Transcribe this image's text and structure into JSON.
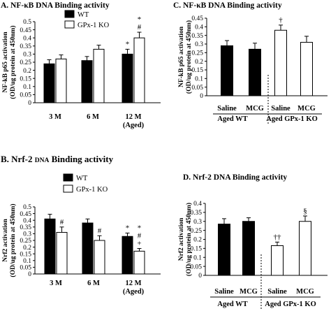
{
  "chart_data": [
    {
      "id": "A",
      "type": "bar",
      "title": "A. NF-κB DNA Binding activity",
      "ylabel_lines": [
        "NF-kB p65 activation",
        "(OD/ug protein at 450nm)"
      ],
      "ylim": [
        0,
        0.5
      ],
      "yticks": [
        "0",
        "0.05",
        "0.1",
        "0.15",
        "0.2",
        "0.25",
        "0.3",
        "0.35",
        "0.4",
        "0.45",
        "0.5"
      ],
      "categories": [
        "3 M",
        "6 M",
        "12 M"
      ],
      "category_sublabels": [
        "",
        "",
        "(Aged)"
      ],
      "legend": true,
      "series": [
        {
          "name": "WT",
          "fill": "#000000",
          "values": [
            0.24,
            0.26,
            0.3
          ],
          "errors": [
            0.025,
            0.025,
            0.03
          ],
          "annotations": [
            "",
            "",
            "*"
          ]
        },
        {
          "name": "GPx-1 KO",
          "fill": "#ffffff",
          "values": [
            0.27,
            0.33,
            0.4
          ],
          "errors": [
            0.025,
            0.025,
            0.035
          ],
          "annotations": [
            "",
            "",
            "*\n#"
          ]
        }
      ]
    },
    {
      "id": "B",
      "type": "bar",
      "title_parts": [
        "B. Nrf-2 ",
        "DNA",
        " Binding activity"
      ],
      "ylabel_lines": [
        "Nrf2 activation",
        "(OD/ug protein at 450nm)"
      ],
      "ylim": [
        0,
        0.5
      ],
      "yticks": [
        "0",
        "0.05",
        "0.1",
        "0.15",
        "0.2",
        "0.25",
        "0.3",
        "0.35",
        "0.4",
        "0.45",
        "0.5"
      ],
      "categories": [
        "3 M",
        "6 M",
        "12 M"
      ],
      "category_sublabels": [
        "",
        "",
        "(Aged)"
      ],
      "legend": true,
      "series": [
        {
          "name": "WT",
          "fill": "#000000",
          "values": [
            0.41,
            0.38,
            0.28
          ],
          "errors": [
            0.035,
            0.03,
            0.025
          ],
          "annotations": [
            "",
            "",
            "*"
          ]
        },
        {
          "name": "GPx-1 KO",
          "fill": "#ffffff",
          "values": [
            0.31,
            0.25,
            0.17
          ],
          "errors": [
            0.04,
            0.035,
            0.02
          ],
          "annotations": [
            "#",
            "#",
            "*\n#\n+"
          ]
        }
      ]
    },
    {
      "id": "C",
      "type": "bar",
      "title": "C. NF-κB DNA Binding activity",
      "ylabel_lines": [
        "NF-kB p65 activation",
        "(OD/ug protein at 450nm)"
      ],
      "ylim": [
        0,
        0.45
      ],
      "yticks": [
        "0",
        "0.05",
        "0.1",
        "0.15",
        "0.2",
        "0.25",
        "0.3",
        "0.35",
        "0.4",
        "0.45"
      ],
      "categories": [
        "Saline",
        "MCG",
        "Saline",
        "MCG"
      ],
      "group_labels": [
        "Aged WT",
        "Aged GPx-1 KO"
      ],
      "fills": [
        "#000000",
        "#000000",
        "#ffffff",
        "#ffffff"
      ],
      "values": [
        0.29,
        0.27,
        0.38,
        0.31
      ],
      "errors": [
        0.03,
        0.035,
        0.03,
        0.035
      ],
      "annotations": [
        "",
        "",
        "†",
        ""
      ]
    },
    {
      "id": "D",
      "type": "bar",
      "title": "D. Nrf-2 DNA Binding activity",
      "ylabel_lines": [
        "Nrf2 activation",
        "(OD/ug protein at 450nm)"
      ],
      "ylim": [
        0,
        0.4
      ],
      "yticks": [
        "0",
        "0.05",
        "0.1",
        "0.15",
        "0.2",
        "0.25",
        "0.3",
        "0.35",
        "0.4"
      ],
      "categories": [
        "Saline",
        "MCG",
        "Saline",
        "MCG"
      ],
      "group_labels": [
        "Aged WT",
        "Aged GPx-1 KO"
      ],
      "fills": [
        "#000000",
        "#000000",
        "#ffffff",
        "#ffffff"
      ],
      "values": [
        0.285,
        0.3,
        0.165,
        0.3
      ],
      "errors": [
        0.03,
        0.02,
        0.02,
        0.03
      ],
      "annotations": [
        "",
        "",
        "††",
        "§"
      ]
    }
  ]
}
